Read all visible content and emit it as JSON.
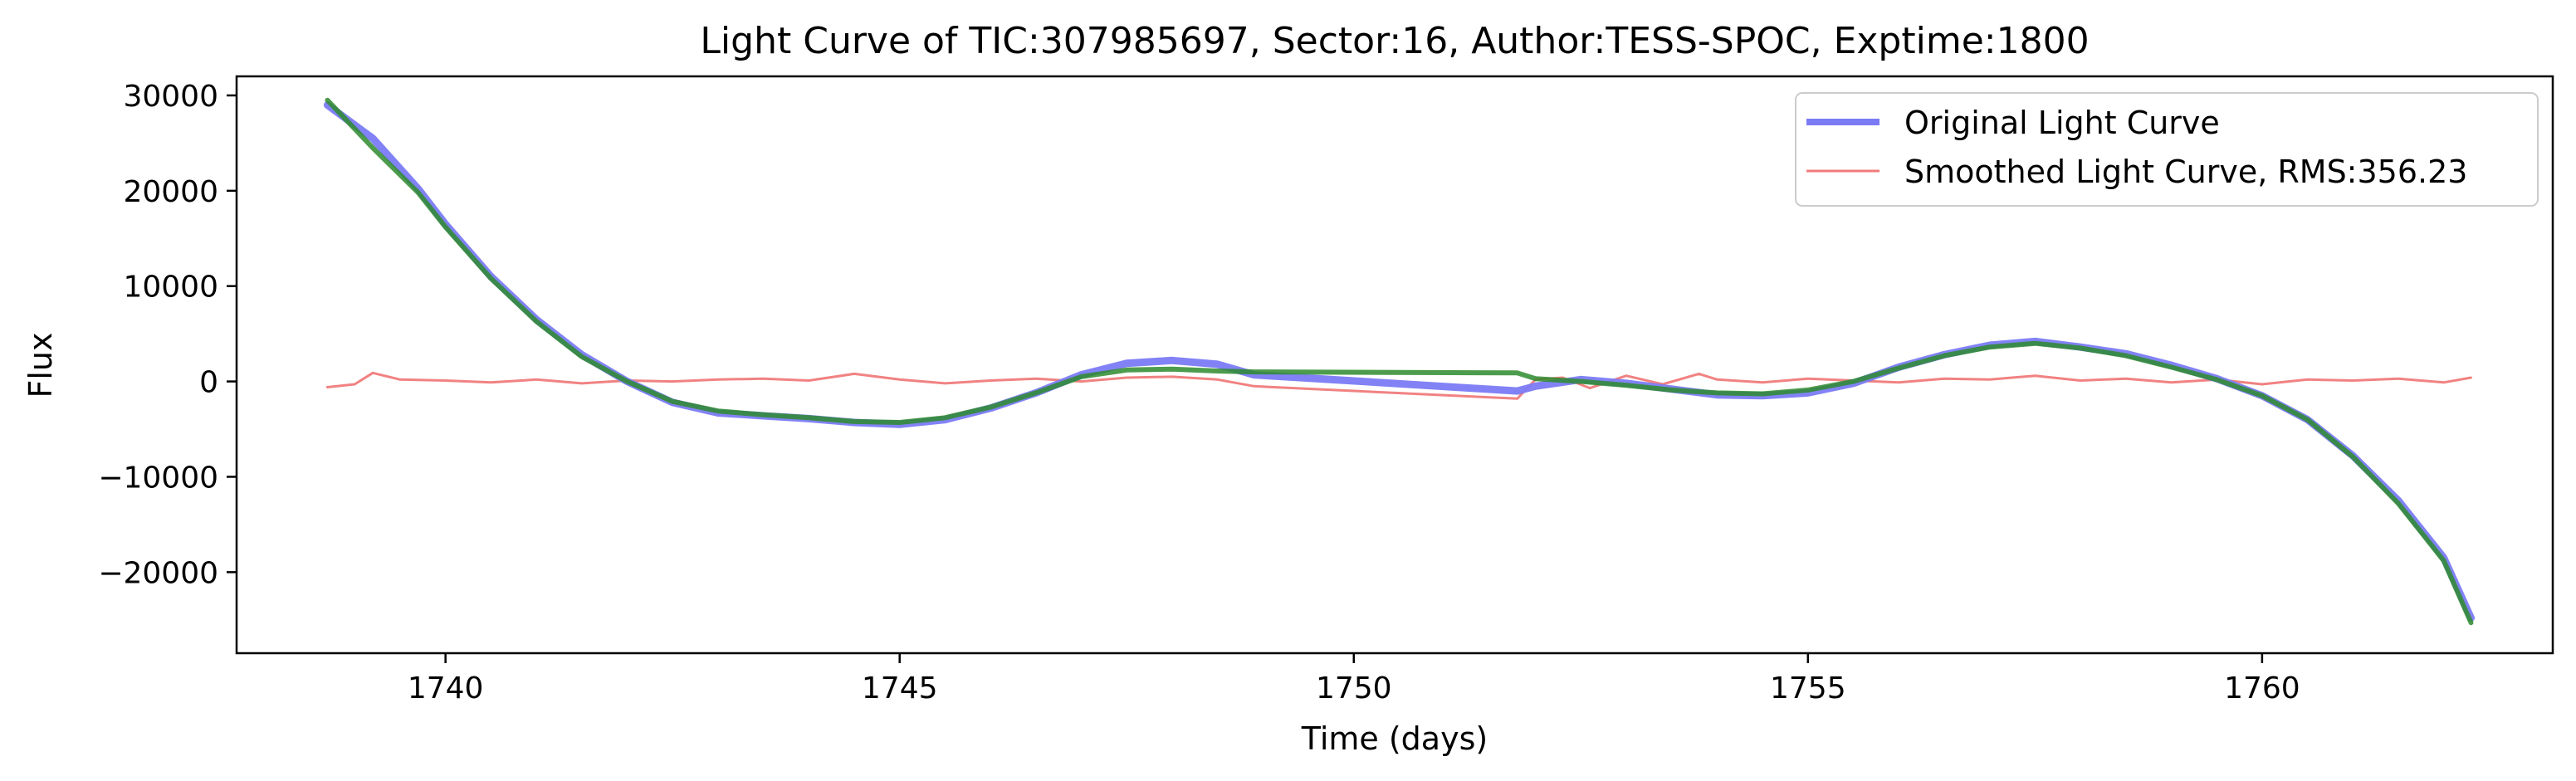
{
  "chart_data": {
    "type": "line",
    "title": "Light Curve of TIC:307985697, Sector:16, Author:TESS-SPOC, Exptime:1800",
    "xlabel": "Time (days)",
    "ylabel": "Flux",
    "xlim": [
      1737.7,
      1763.2
    ],
    "ylim": [
      -28500,
      32000
    ],
    "xticks": [
      1740,
      1745,
      1750,
      1755,
      1760
    ],
    "yticks": [
      -20000,
      -10000,
      0,
      10000,
      20000,
      30000
    ],
    "ytick_labels": [
      "−20000",
      "−10000",
      "0",
      "10000",
      "20000",
      "30000"
    ],
    "grid": false,
    "legend_position": "top-right",
    "colors": {
      "original": "#7b7bf5",
      "smoothed_residual": "#f07b7b",
      "trend": "#2e8b2e"
    },
    "series": [
      {
        "name": "Original Light Curve",
        "style": "thick-blue",
        "x": [
          1738.7,
          1739.2,
          1739.7,
          1740.0,
          1740.5,
          1741.0,
          1741.5,
          1742.0,
          1742.5,
          1743.0,
          1743.5,
          1744.0,
          1744.5,
          1745.0,
          1745.5,
          1746.0,
          1746.5,
          1747.0,
          1747.5,
          1748.0,
          1748.5,
          1748.9,
          1751.8,
          1752.0,
          1752.5,
          1753.0,
          1753.5,
          1754.0,
          1754.5,
          1755.0,
          1755.5,
          1756.0,
          1756.5,
          1757.0,
          1757.5,
          1758.0,
          1758.5,
          1759.0,
          1759.5,
          1760.0,
          1760.5,
          1761.0,
          1761.5,
          1762.0,
          1762.3
        ],
        "y": [
          29000,
          25500,
          20200,
          16500,
          11000,
          6500,
          2800,
          0,
          -2200,
          -3300,
          -3600,
          -3900,
          -4300,
          -4500,
          -4000,
          -2800,
          -1200,
          700,
          1900,
          2200,
          1800,
          700,
          -1000,
          -500,
          200,
          -200,
          -800,
          -1400,
          -1500,
          -1200,
          -200,
          1500,
          2800,
          3800,
          4200,
          3600,
          2900,
          1700,
          300,
          -1500,
          -4000,
          -7800,
          -12500,
          -18500,
          -24800
        ]
      },
      {
        "name": "Smoothed Light Curve, RMS:356.23",
        "style": "thin-red",
        "x": [
          1738.7,
          1739.0,
          1739.2,
          1739.5,
          1740.0,
          1740.5,
          1741.0,
          1741.5,
          1742.0,
          1742.5,
          1743.0,
          1743.5,
          1744.0,
          1744.5,
          1745.0,
          1745.5,
          1746.0,
          1746.5,
          1747.0,
          1747.5,
          1748.0,
          1748.5,
          1748.9,
          1751.8,
          1752.0,
          1752.3,
          1752.6,
          1753.0,
          1753.4,
          1753.8,
          1754.0,
          1754.5,
          1755.0,
          1755.5,
          1756.0,
          1756.5,
          1757.0,
          1757.5,
          1758.0,
          1758.5,
          1759.0,
          1759.5,
          1760.0,
          1760.5,
          1761.0,
          1761.5,
          1762.0,
          1762.3
        ],
        "y": [
          -600,
          -300,
          900,
          200,
          100,
          -100,
          200,
          -200,
          100,
          0,
          200,
          300,
          100,
          800,
          200,
          -200,
          100,
          300,
          0,
          400,
          500,
          200,
          -500,
          -1800,
          200,
          400,
          -700,
          600,
          -300,
          800,
          200,
          -100,
          300,
          100,
          -100,
          300,
          200,
          600,
          100,
          300,
          -100,
          200,
          -300,
          200,
          100,
          300,
          -100,
          400
        ]
      },
      {
        "name": "",
        "style": "thick-green",
        "x": [
          1738.7,
          1739.2,
          1739.7,
          1740.0,
          1740.5,
          1741.0,
          1741.5,
          1742.0,
          1742.5,
          1743.0,
          1743.5,
          1744.0,
          1744.5,
          1745.0,
          1745.5,
          1746.0,
          1746.5,
          1747.0,
          1747.5,
          1748.0,
          1748.5,
          1748.9,
          1751.8,
          1752.0,
          1752.5,
          1753.0,
          1753.5,
          1754.0,
          1754.5,
          1755.0,
          1755.5,
          1756.0,
          1756.5,
          1757.0,
          1757.5,
          1758.0,
          1758.5,
          1759.0,
          1759.5,
          1760.0,
          1760.5,
          1761.0,
          1761.5,
          1762.0,
          1762.3
        ],
        "y": [
          29500,
          24500,
          19800,
          16200,
          10800,
          6300,
          2600,
          0,
          -2100,
          -3100,
          -3500,
          -3800,
          -4200,
          -4300,
          -3800,
          -2700,
          -1200,
          500,
          1200,
          1300,
          1100,
          1000,
          900,
          300,
          0,
          -400,
          -900,
          -1200,
          -1300,
          -900,
          0,
          1400,
          2700,
          3600,
          4000,
          3500,
          2700,
          1500,
          200,
          -1500,
          -4000,
          -7900,
          -12800,
          -18800,
          -25300
        ]
      }
    ],
    "legend": [
      {
        "label": "Original Light Curve",
        "color": "#7b7bf5"
      },
      {
        "label": "Smoothed Light Curve, RMS:356.23",
        "color": "#f07b7b"
      }
    ]
  }
}
